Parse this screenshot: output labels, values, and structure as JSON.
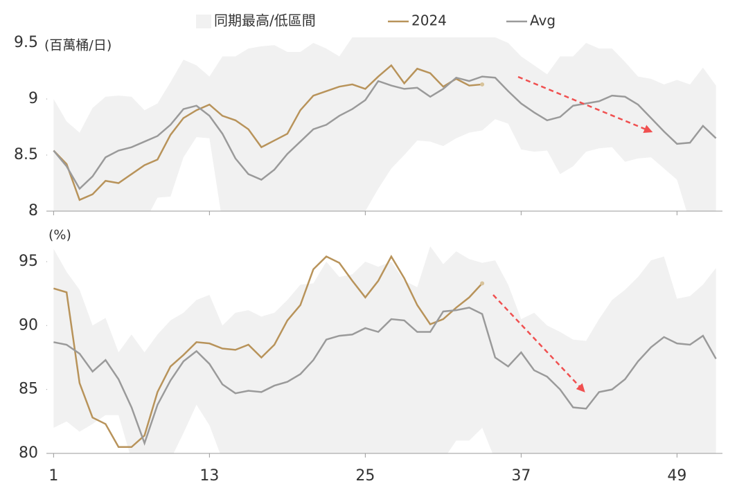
{
  "chart_data": [
    {
      "type": "line",
      "unit_label": "(百萬桶/日)",
      "x": [
        1,
        2,
        3,
        4,
        5,
        6,
        7,
        8,
        9,
        10,
        11,
        12,
        13,
        14,
        15,
        16,
        17,
        18,
        19,
        20,
        21,
        22,
        23,
        24,
        25,
        26,
        27,
        28,
        29,
        30,
        31,
        32,
        33,
        34,
        35,
        36,
        37,
        38,
        39,
        40,
        41,
        42,
        43,
        44,
        45,
        46,
        47,
        48,
        49,
        50,
        51,
        52
      ],
      "xlim": [
        0.5,
        52.5
      ],
      "xticks": [
        1,
        13,
        25,
        37,
        49
      ],
      "ylim": [
        8,
        9.5
      ],
      "yticks": [
        8,
        {
          "value": 8.5,
          "label": "8.5"
        },
        9,
        {
          "value": 9.5,
          "label": "9.5"
        }
      ],
      "series": [
        {
          "name": "同期最高/低區間",
          "type": "band",
          "color": "#f1f1f1",
          "high": [
            9.0,
            8.8,
            8.7,
            8.92,
            9.02,
            9.03,
            9.02,
            8.9,
            8.96,
            9.15,
            9.35,
            9.3,
            9.2,
            9.38,
            9.38,
            9.45,
            9.47,
            9.48,
            9.42,
            9.42,
            9.5,
            9.45,
            9.38,
            9.55,
            9.55,
            9.55,
            9.55,
            9.55,
            9.55,
            9.55,
            9.55,
            9.55,
            9.55,
            9.55,
            9.55,
            9.5,
            9.38,
            9.3,
            9.22,
            9.38,
            9.38,
            9.5,
            9.45,
            9.45,
            9.33,
            9.2,
            9.18,
            9.13,
            9.17,
            9.13,
            9.28,
            9.12
          ],
          "low": [
            7.9,
            7.9,
            7.9,
            7.9,
            7.9,
            7.9,
            7.9,
            7.9,
            8.12,
            8.13,
            8.48,
            8.66,
            8.65,
            7.9,
            7.9,
            7.9,
            7.9,
            7.9,
            7.9,
            7.9,
            7.9,
            7.9,
            7.9,
            7.9,
            8.0,
            8.2,
            8.38,
            8.5,
            8.63,
            8.62,
            8.58,
            8.65,
            8.7,
            8.72,
            8.82,
            8.78,
            8.55,
            8.53,
            8.54,
            8.33,
            8.4,
            8.53,
            8.56,
            8.57,
            8.44,
            8.47,
            8.48,
            8.38,
            8.28,
            7.9,
            7.9,
            7.9
          ]
        },
        {
          "name": "2024",
          "color": "#b8935a",
          "values": [
            8.54,
            8.42,
            8.1,
            8.15,
            8.27,
            8.25,
            8.33,
            8.41,
            8.46,
            8.68,
            8.83,
            8.9,
            8.95,
            8.85,
            8.81,
            8.73,
            8.57,
            8.63,
            8.69,
            8.9,
            9.03,
            9.07,
            9.11,
            9.13,
            9.09,
            9.2,
            9.3,
            9.14,
            9.27,
            9.23,
            9.11,
            9.18,
            9.12,
            9.13,
            null,
            null,
            null,
            null,
            null,
            null,
            null,
            null,
            null,
            null,
            null,
            null,
            null,
            null,
            null,
            null,
            null,
            null
          ]
        },
        {
          "name": "Avg",
          "color": "#9a9a9a",
          "values": [
            8.54,
            8.4,
            8.2,
            8.31,
            8.48,
            8.54,
            8.57,
            8.62,
            8.67,
            8.77,
            8.91,
            8.94,
            8.85,
            8.69,
            8.47,
            8.33,
            8.28,
            8.37,
            8.51,
            8.62,
            8.73,
            8.77,
            8.85,
            8.91,
            8.99,
            9.16,
            9.12,
            9.09,
            9.1,
            9.02,
            9.09,
            9.19,
            9.16,
            9.2,
            9.19,
            9.07,
            8.96,
            8.88,
            8.81,
            8.84,
            8.94,
            8.96,
            8.98,
            9.03,
            9.02,
            8.95,
            8.83,
            8.71,
            8.6,
            8.61,
            8.76,
            8.65
          ]
        }
      ]
    },
    {
      "type": "line",
      "unit_label": "(%)",
      "x": [
        1,
        2,
        3,
        4,
        5,
        6,
        7,
        8,
        9,
        10,
        11,
        12,
        13,
        14,
        15,
        16,
        17,
        18,
        19,
        20,
        21,
        22,
        23,
        24,
        25,
        26,
        27,
        28,
        29,
        30,
        31,
        32,
        33,
        34,
        35,
        36,
        37,
        38,
        39,
        40,
        41,
        42,
        43,
        44,
        45,
        46,
        47,
        48,
        49,
        50,
        51,
        52
      ],
      "xlim": [
        0.5,
        52.5
      ],
      "xticks": [
        1,
        13,
        25,
        37,
        49
      ],
      "ylim": [
        80,
        97
      ],
      "yticks": [
        80,
        85,
        90,
        95
      ],
      "series": [
        {
          "type": "band",
          "color": "#f1f1f1",
          "high": [
            96,
            94.2,
            92.8,
            90,
            90.6,
            87.9,
            89.3,
            87.9,
            89.3,
            90.4,
            91,
            92,
            92.4,
            90,
            91,
            91.2,
            90.7,
            91,
            92,
            93.2,
            93.3,
            95,
            93.8,
            94,
            95,
            94.6,
            95,
            93.5,
            93,
            96.2,
            94.8,
            95.8,
            95.2,
            94.9,
            95.1,
            93.2,
            90.5,
            91,
            90,
            89.5,
            88.9,
            88.8,
            90.5,
            92,
            92.8,
            93.8,
            95.1,
            95.4,
            92.1,
            92.3,
            93.2,
            94.5
          ],
          "low": [
            82,
            82.5,
            81.7,
            82.3,
            83,
            83,
            79.5,
            79.5,
            79.5,
            79.5,
            81.6,
            83.8,
            82.2,
            79.5,
            79.5,
            79.5,
            79.5,
            79.5,
            79.5,
            79.5,
            79.5,
            79.5,
            79.5,
            79.5,
            79.5,
            79.5,
            79.5,
            79.5,
            79.5,
            79.5,
            79.5,
            81,
            81,
            82,
            79.5,
            79.5,
            79.5,
            79.5,
            79.5,
            79.5,
            79.5,
            79.5,
            79.5,
            79.5,
            79.5,
            79.5,
            79.5,
            79.5,
            79.5,
            79.5,
            79.5,
            79.5
          ]
        },
        {
          "color": "#b8935a",
          "values": [
            92.9,
            92.6,
            85.5,
            82.8,
            82.3,
            80.5,
            80.5,
            81.4,
            84.8,
            86.8,
            87.7,
            88.7,
            88.6,
            88.2,
            88.1,
            88.5,
            87.5,
            88.5,
            90.4,
            91.6,
            94.4,
            95.4,
            94.9,
            93.5,
            92.2,
            93.5,
            95.4,
            93.7,
            91.6,
            90.1,
            90.5,
            91.4,
            92.2,
            93.3,
            null,
            null,
            null,
            null,
            null,
            null,
            null,
            null,
            null,
            null,
            null,
            null,
            null,
            null,
            null,
            null,
            null,
            null
          ]
        },
        {
          "color": "#9a9a9a",
          "values": [
            88.7,
            88.5,
            87.8,
            86.4,
            87.3,
            85.8,
            83.6,
            80.8,
            83.8,
            85.7,
            87.2,
            88.0,
            87.0,
            85.4,
            84.7,
            84.9,
            84.8,
            85.3,
            85.6,
            86.2,
            87.3,
            88.9,
            89.2,
            89.3,
            89.8,
            89.5,
            90.5,
            90.4,
            89.5,
            89.5,
            91.1,
            91.2,
            91.4,
            90.9,
            87.5,
            86.8,
            87.9,
            86.5,
            86.0,
            85.0,
            83.6,
            83.5,
            84.8,
            85.0,
            85.8,
            87.2,
            88.3,
            89.1,
            88.6,
            88.5,
            89.2,
            87.4
          ]
        }
      ]
    }
  ]
}
